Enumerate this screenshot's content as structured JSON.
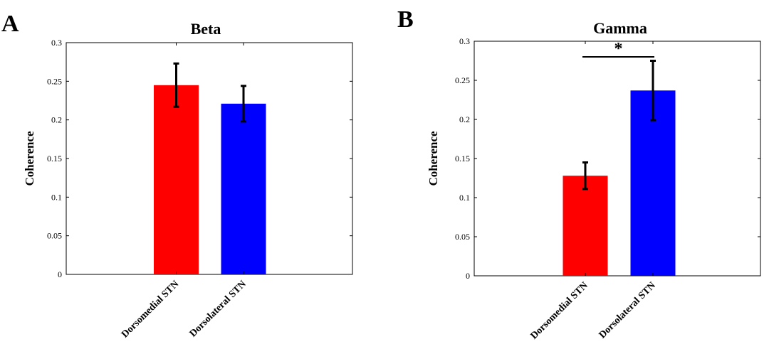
{
  "panels": {
    "A": {
      "letter": "A"
    },
    "B": {
      "letter": "B"
    }
  },
  "chart_data": [
    {
      "type": "bar",
      "panel": "A",
      "title": "Beta",
      "xlabel": "",
      "ylabel": "Coherence",
      "categories": [
        "Dorsomedial STN",
        "Dorsolateral STN"
      ],
      "values": [
        0.245,
        0.221
      ],
      "errors": [
        0.028,
        0.023
      ],
      "colors": [
        "#ff0000",
        "#0000ff"
      ],
      "ylim": [
        0,
        0.3
      ],
      "yticks": [
        0,
        0.05,
        0.1,
        0.15,
        0.2,
        0.25,
        0.3
      ],
      "ytick_labels": [
        "0",
        "0.05",
        "0.1",
        "0.15",
        "0.2",
        "0.25",
        "0.3"
      ],
      "grid": false,
      "significance": null
    },
    {
      "type": "bar",
      "panel": "B",
      "title": "Gamma",
      "xlabel": "",
      "ylabel": "Coherence",
      "categories": [
        "Dorsomedial STN",
        "Dorsolateral STN"
      ],
      "values": [
        0.128,
        0.237
      ],
      "errors": [
        0.017,
        0.038
      ],
      "colors": [
        "#ff0000",
        "#0000ff"
      ],
      "ylim": [
        0,
        0.3
      ],
      "yticks": [
        0,
        0.05,
        0.1,
        0.15,
        0.2,
        0.25,
        0.3
      ],
      "ytick_labels": [
        "0",
        "0.05",
        "0.1",
        "0.15",
        "0.2",
        "0.25",
        "0.3"
      ],
      "grid": false,
      "significance": {
        "label": "*",
        "between": [
          0,
          1
        ],
        "y": 0.28
      }
    }
  ]
}
